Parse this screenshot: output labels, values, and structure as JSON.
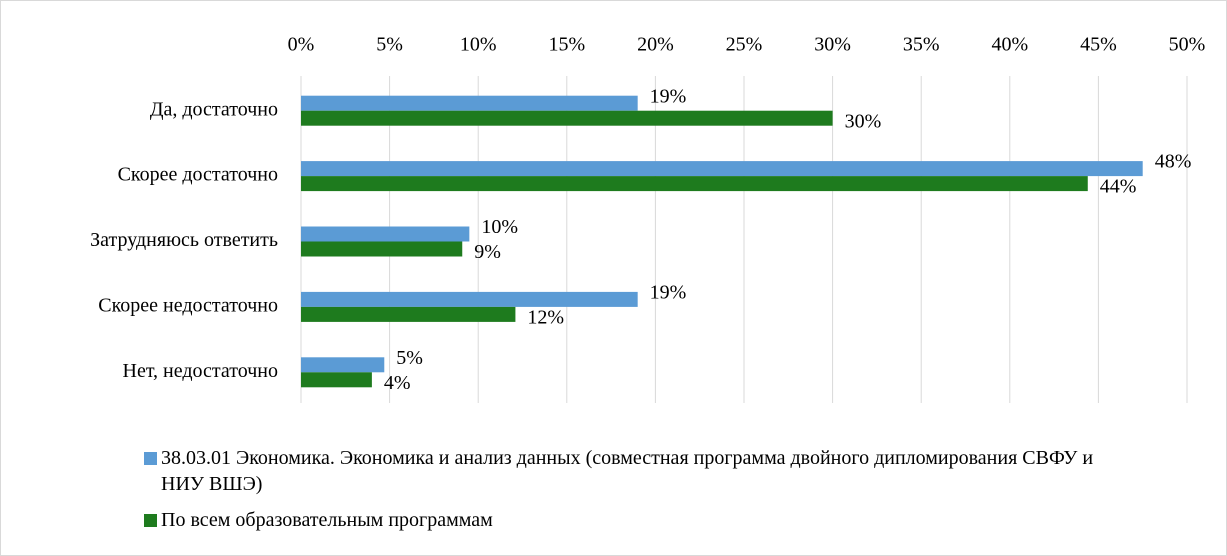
{
  "chart_data": {
    "type": "barh",
    "categories": [
      "Да, достаточно",
      "Скорее достаточно",
      "Затрудняюсь ответить",
      "Скорее недостаточно",
      "Нет, недостаточно"
    ],
    "series": [
      {
        "name": "38.03.01 Экономика. Экономика и анализ данных (совместная программа двойного дипломирования СВФУ и НИУ ВШЭ)",
        "color": "#5b9bd5",
        "values": [
          19,
          47.5,
          9.5,
          19,
          4.7
        ],
        "value_labels": [
          "19%",
          "48%",
          "10%",
          "19%",
          "5%"
        ]
      },
      {
        "name": "По всем образовательным программам",
        "color": "#1e7b1e",
        "values": [
          30,
          44.4,
          9.1,
          12.1,
          4
        ],
        "value_labels": [
          "30%",
          "44%",
          "9%",
          "12%",
          "4%"
        ]
      }
    ],
    "xlim": [
      0,
      50
    ],
    "xticks": [
      {
        "value": 0,
        "label": "0%"
      },
      {
        "value": 5,
        "label": "5%"
      },
      {
        "value": 10,
        "label": "10%"
      },
      {
        "value": 15,
        "label": "15%"
      },
      {
        "value": 20,
        "label": "20%"
      },
      {
        "value": 25,
        "label": "25%"
      },
      {
        "value": 30,
        "label": "30%"
      },
      {
        "value": 35,
        "label": "35%"
      },
      {
        "value": 40,
        "label": "40%"
      },
      {
        "value": 45,
        "label": "45%"
      },
      {
        "value": 50,
        "label": "50%"
      }
    ],
    "grid": true,
    "legend": "bottom"
  }
}
